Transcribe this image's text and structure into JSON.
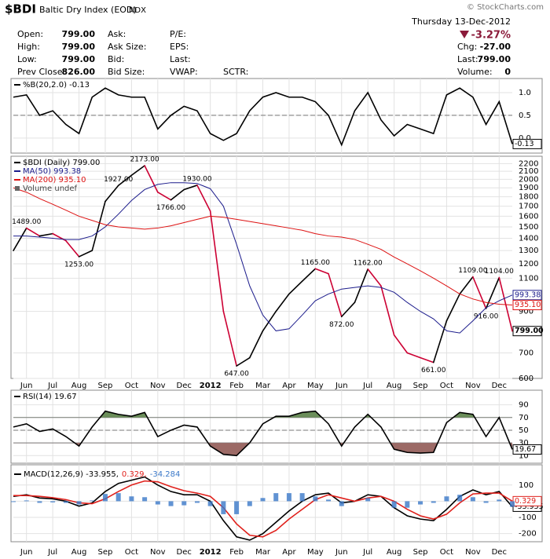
{
  "header": {
    "symbol": "$BDI",
    "name": "Baltic Dry Index (EOD)",
    "exchange": "INDX",
    "copyright": "© StockCharts.com",
    "date": "Thursday 13-Dec-2012",
    "change_pct": "-3.27%",
    "quote": [
      [
        {
          "label": "Open:",
          "value": "799.00"
        },
        {
          "label": "Ask:"
        },
        {
          "label": "P/E:"
        }
      ],
      [
        {
          "label": "High:",
          "value": "799.00"
        },
        {
          "label": "Ask Size:"
        },
        {
          "label": "EPS:"
        }
      ],
      [
        {
          "label": "Low:",
          "value": "799.00"
        },
        {
          "label": "Bid:"
        },
        {
          "label": "Last:"
        }
      ],
      [
        {
          "label": "Prev Close:",
          "value": "826.00"
        },
        {
          "label": "Bid Size:"
        },
        {
          "label": "VWAP:"
        },
        {
          "label": "SCTR:"
        }
      ]
    ],
    "stats": [
      {
        "label": "Chg:",
        "value": "-27.00"
      },
      {
        "label": "Last:",
        "value": "799.00"
      },
      {
        "label": "Volume:",
        "value": "0"
      }
    ]
  },
  "chart_data": [
    {
      "type": "line",
      "series": [
        {
          "name": "%B(20,2.0) -0.13",
          "color": "#000000",
          "last_box": true,
          "values": [
            0.9,
            0.95,
            0.5,
            0.6,
            0.3,
            0.1,
            0.9,
            1.1,
            0.95,
            0.9,
            0.9,
            0.2,
            0.5,
            0.7,
            0.6,
            0.1,
            -0.05,
            0.1,
            0.6,
            0.9,
            1.0,
            0.9,
            0.9,
            0.8,
            0.5,
            -0.15,
            0.6,
            1.0,
            0.4,
            0.05,
            0.3,
            0.2,
            0.1,
            0.95,
            1.1,
            0.9,
            0.3,
            0.8,
            -0.13
          ]
        }
      ],
      "ylim": [
        -0.33,
        1.31
      ],
      "yticks": [
        {
          "value": 1,
          "label": "1.0"
        },
        {
          "value": 0.5,
          "label": "0.5"
        },
        {
          "value": 0,
          "label": "0.0"
        }
      ],
      "dashed_lines": [
        0.5
      ],
      "grid": true
    },
    {
      "type": "line",
      "log": true,
      "categories": [
        null,
        "Jun",
        null,
        "Jul",
        null,
        "Aug",
        null,
        "Sep",
        null,
        "Oct",
        null,
        "Nov",
        null,
        "Dec",
        null,
        "2012",
        null,
        "Feb",
        null,
        "Mar",
        null,
        "Apr",
        null,
        "May",
        null,
        "Jun",
        null,
        "Jul",
        null,
        "Aug",
        null,
        "Sep",
        null,
        "Oct",
        null,
        "Nov",
        null,
        "Dec",
        null
      ],
      "series": [
        {
          "name": "$BDI (Daily) 799.00",
          "color": "#000000",
          "down_color": "#cc0033",
          "last_box": true,
          "values": [
            1300,
            1489,
            1420,
            1440,
            1380,
            1253,
            1300,
            1750,
            1927,
            2050,
            2173,
            1850,
            1766,
            1880,
            1930,
            1650,
            900,
            647,
            680,
            800,
            900,
            1000,
            1080,
            1165,
            1130,
            872,
            950,
            1162,
            1050,
            780,
            700,
            680,
            661,
            850,
            1000,
            1109,
            916,
            1104,
            799
          ],
          "value_labels": [
            null,
            "1489.00",
            null,
            null,
            null,
            "1253.00",
            null,
            null,
            "1927.00",
            null,
            "2173.00",
            null,
            "1766.00",
            null,
            "1930.00",
            null,
            null,
            "647.00",
            null,
            null,
            null,
            null,
            null,
            "1165.00",
            null,
            "872.00",
            null,
            "1162.00",
            null,
            null,
            null,
            null,
            "661.00",
            null,
            null,
            "1109.00",
            "916.00",
            "1104.00",
            "799.00"
          ]
        },
        {
          "name": "MA(50) 993.38",
          "color": "#1c1c8c",
          "last_box": true,
          "values": [
            1420,
            1420,
            1410,
            1400,
            1390,
            1390,
            1420,
            1500,
            1620,
            1760,
            1880,
            1940,
            1960,
            1960,
            1950,
            1890,
            1700,
            1350,
            1050,
            880,
            800,
            810,
            880,
            960,
            1000,
            1030,
            1040,
            1050,
            1040,
            1010,
            950,
            900,
            860,
            800,
            790,
            850,
            920,
            960,
            993.38
          ],
          "value_labels": [
            null,
            null,
            null,
            null,
            null,
            null,
            null,
            null,
            null,
            null,
            null,
            null,
            null,
            null,
            null,
            null,
            null,
            null,
            null,
            null,
            null,
            null,
            null,
            null,
            null,
            null,
            null,
            null,
            null,
            null,
            null,
            null,
            null,
            null,
            null,
            null,
            null,
            null,
            "993.38"
          ]
        },
        {
          "name": "MA(200) 935.10",
          "color": "#dd1111",
          "last_box": true,
          "values": [
            1900,
            1850,
            1780,
            1720,
            1660,
            1600,
            1560,
            1520,
            1500,
            1490,
            1480,
            1490,
            1510,
            1540,
            1570,
            1600,
            1590,
            1570,
            1550,
            1530,
            1510,
            1490,
            1470,
            1440,
            1420,
            1410,
            1390,
            1350,
            1310,
            1250,
            1200,
            1150,
            1100,
            1050,
            1000,
            970,
            950,
            940,
            935.1
          ],
          "value_labels": [
            null,
            null,
            null,
            null,
            null,
            null,
            null,
            null,
            null,
            null,
            null,
            null,
            null,
            null,
            null,
            null,
            null,
            null,
            null,
            null,
            null,
            null,
            null,
            null,
            null,
            null,
            null,
            null,
            null,
            null,
            null,
            null,
            null,
            null,
            null,
            null,
            null,
            null,
            "935.10"
          ]
        }
      ],
      "volume_label": "Volume undef",
      "ylim": [
        600,
        2300
      ],
      "yticks": [
        2200,
        2100,
        2000,
        1900,
        1800,
        1700,
        1600,
        1500,
        1400,
        1300,
        1200,
        1100,
        1000,
        900,
        700,
        600
      ],
      "grid": true
    },
    {
      "type": "line",
      "series": [
        {
          "name": "RSI(14) 19.67",
          "color": "#000000",
          "last_box": true,
          "values": [
            55,
            60,
            48,
            52,
            40,
            25,
            55,
            80,
            75,
            72,
            78,
            40,
            50,
            58,
            55,
            25,
            12,
            10,
            30,
            60,
            72,
            72,
            78,
            80,
            60,
            25,
            55,
            75,
            55,
            20,
            15,
            14,
            15,
            62,
            78,
            75,
            40,
            70,
            19.67
          ]
        }
      ],
      "ylim": [
        -2,
        113
      ],
      "yticks": [
        90,
        70,
        50,
        30,
        10
      ],
      "reference_lines": [
        70,
        30
      ],
      "dashed_lines": [
        50
      ],
      "fill_above": 70,
      "fill_above_color": "#6b8e5a",
      "fill_below": 30,
      "fill_below_color": "#9c6a66",
      "grid": true
    },
    {
      "type": "line",
      "legend": [
        "MACD(12,26,9) -33.955,",
        "0.329,",
        "-34.284"
      ],
      "series": [
        {
          "name": "MACD(12,26,9)",
          "color": "#000000",
          "last_box": true,
          "values": [
            30,
            40,
            20,
            15,
            0,
            -30,
            -10,
            60,
            110,
            130,
            150,
            100,
            60,
            40,
            40,
            0,
            -120,
            -220,
            -240,
            -200,
            -130,
            -60,
            0,
            40,
            50,
            -10,
            0,
            40,
            30,
            -40,
            -90,
            -110,
            -120,
            -50,
            30,
            70,
            40,
            60,
            -33.955
          ]
        },
        {
          "name": "Signal",
          "color": "#e0201b",
          "last_box": true,
          "values": [
            35,
            35,
            30,
            22,
            10,
            -10,
            -15,
            15,
            60,
            100,
            125,
            120,
            90,
            65,
            50,
            30,
            -40,
            -140,
            -210,
            -220,
            -180,
            -110,
            -50,
            10,
            40,
            20,
            0,
            20,
            30,
            0,
            -50,
            -90,
            -110,
            -80,
            -10,
            45,
            50,
            50,
            0.329
          ]
        },
        {
          "name": "Histogram",
          "color": "#3a78c8",
          "kind": "bar",
          "values": [
            -5,
            5,
            -10,
            -7,
            -10,
            -20,
            5,
            45,
            50,
            30,
            25,
            -20,
            -30,
            -25,
            -10,
            -30,
            -80,
            -80,
            -30,
            20,
            50,
            50,
            50,
            30,
            10,
            -30,
            0,
            20,
            0,
            -40,
            -40,
            -20,
            -10,
            30,
            40,
            25,
            -10,
            10,
            -34.284
          ]
        }
      ],
      "ylim": [
        -250,
        225
      ],
      "yticks": [
        100,
        0,
        -100,
        -200
      ],
      "grid": true
    }
  ]
}
